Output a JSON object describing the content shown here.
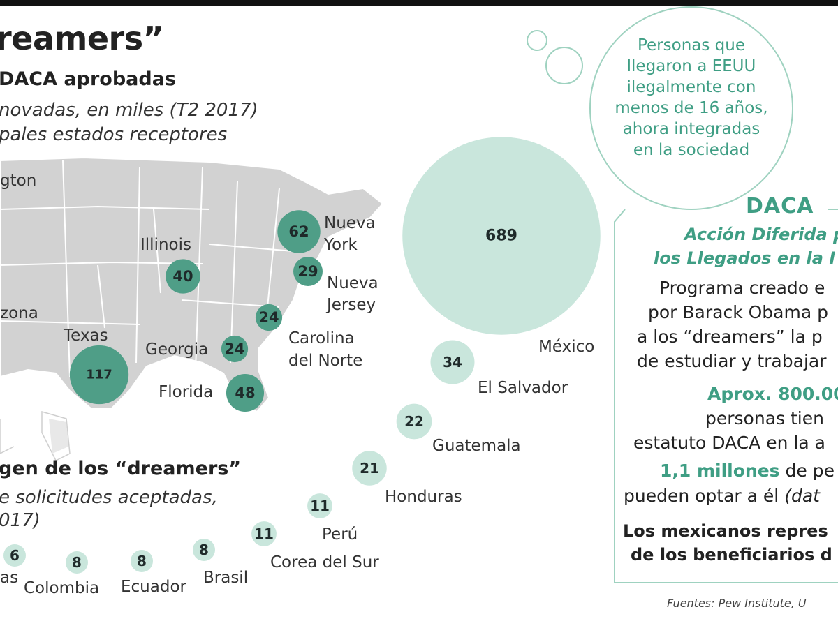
{
  "title": "reamers”",
  "map_section": {
    "heading": "DACA aprobadas",
    "subtitle_line1": "novadas, en miles  (T2 2017)",
    "subtitle_line2": "pales estados receptores"
  },
  "states": [
    {
      "name": "gton",
      "value": null
    },
    {
      "name": "zona",
      "value": null
    },
    {
      "name": "Illinois",
      "value": 40
    },
    {
      "name": "Texas",
      "value": 117
    },
    {
      "name": "Georgia",
      "value": 24
    },
    {
      "name": "Florida",
      "value": 48
    },
    {
      "name": "Nueva",
      "name2": "York",
      "value": 62
    },
    {
      "name": "Nueva",
      "name2": "Jersey",
      "value": 29
    },
    {
      "name": "Carolina",
      "name2": "del Norte",
      "value": 24
    }
  ],
  "origin_section": {
    "heading": "gen de los “dreamers”",
    "subtitle_line1": "e solicitudes aceptadas,",
    "subtitle_line2": "017)"
  },
  "countries": [
    {
      "name": "México",
      "value": 689
    },
    {
      "name": "El Salvador",
      "value": 34
    },
    {
      "name": "Guatemala",
      "value": 22
    },
    {
      "name": "Honduras",
      "value": 21
    },
    {
      "name": "Perú",
      "value": 11
    },
    {
      "name": "Corea del Sur",
      "value": 11
    },
    {
      "name": "Brasil",
      "value": 8
    },
    {
      "name": "Ecuador",
      "value": 8
    },
    {
      "name": "Colombia",
      "value": 8
    },
    {
      "name": "as",
      "value": 6
    }
  ],
  "cloud": {
    "lines": [
      "Personas que",
      "llegaron a EEUU",
      "ilegalmente con",
      "menos de 16 años,",
      "ahora integradas",
      "en la sociedad"
    ]
  },
  "daca_box": {
    "title": "DACA",
    "sub1": "Acción Diferida p",
    "sub2": "los Llegados en la I",
    "p1": [
      "Programa creado e",
      "por Barack Obama p",
      "a los “dreamers” la p",
      "de estudiar y trabajar"
    ],
    "approx": "Aprox. 800.00",
    "p2": [
      "personas tien",
      "estatuto DACA en la a"
    ],
    "millions": "1,1 millones",
    "millions_rest": " de pe",
    "p3_plain": "pueden optar a él ",
    "p3_ital": "(dat",
    "bold_lines": [
      "Los mexicanos repres",
      "de los beneficiarios d"
    ]
  },
  "sources": "Fuentes: Pew Institute, U",
  "colors": {
    "state_bubble": "#4f9e87",
    "country_bubble": "#c9e6dc",
    "accent": "#3f9e84",
    "map_fill": "#d2d2d2",
    "map_lines": "#ffffff"
  }
}
